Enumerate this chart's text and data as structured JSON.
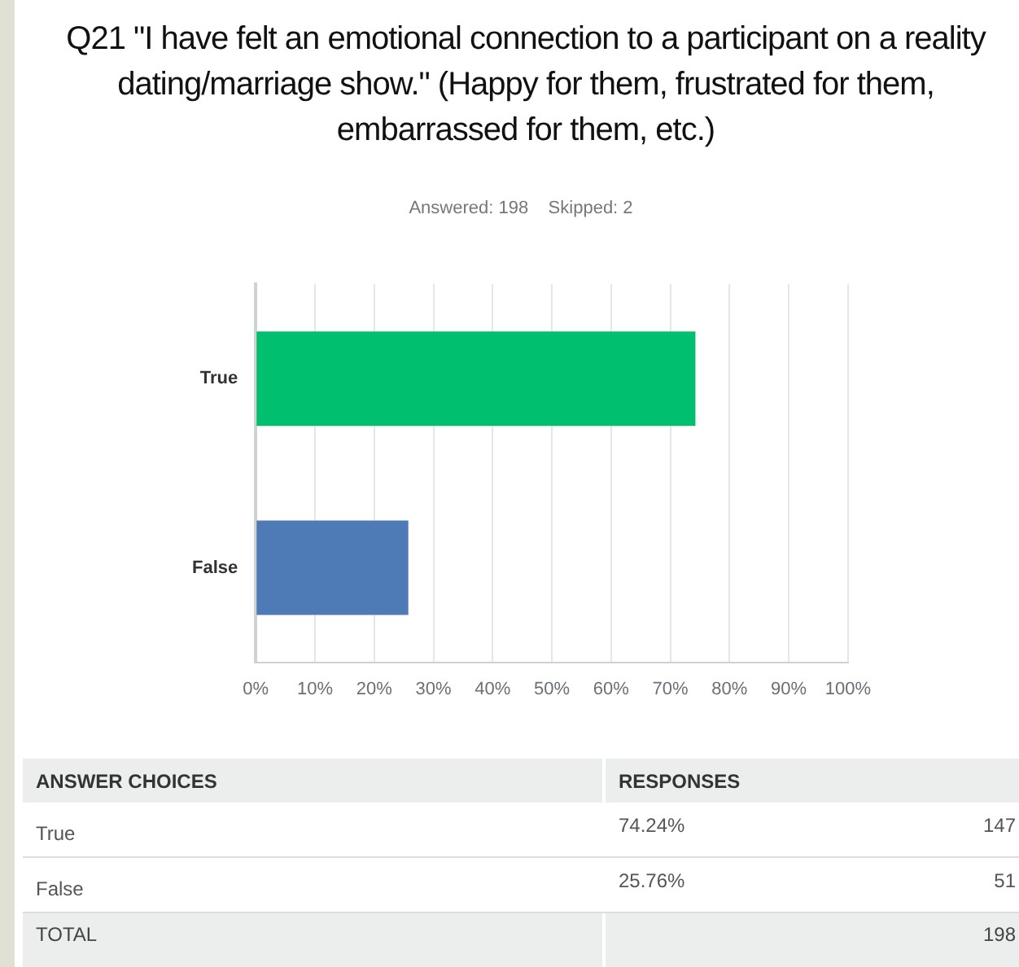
{
  "chart_data": {
    "type": "bar",
    "orientation": "horizontal",
    "title": "Q21 \"I have felt an emotional connection to a participant on a reality dating/marriage show.\" (Happy for them, frustrated for them, embarrassed for them, etc.)",
    "subtitle": "Answered: 198    Skipped: 2",
    "categories": [
      "True",
      "False"
    ],
    "values": [
      74.24,
      25.76
    ],
    "colors": [
      "#00bf6f",
      "#4e7ab5"
    ],
    "xlim": [
      0,
      100
    ],
    "xticks": [
      {
        "value": 0,
        "label": "0%"
      },
      {
        "value": 10,
        "label": "10%"
      },
      {
        "value": 20,
        "label": "20%"
      },
      {
        "value": 30,
        "label": "30%"
      },
      {
        "value": 40,
        "label": "40%"
      },
      {
        "value": 50,
        "label": "50%"
      },
      {
        "value": 60,
        "label": "60%"
      },
      {
        "value": 70,
        "label": "70%"
      },
      {
        "value": 80,
        "label": "80%"
      },
      {
        "value": 90,
        "label": "90%"
      },
      {
        "value": 100,
        "label": "100%"
      }
    ],
    "grid": "x",
    "legend": false,
    "annotations": [
      "ANSWER CHOICES",
      "RESPONSES",
      "74.24%",
      "147",
      "25.76%",
      "51",
      "TOTAL",
      "198"
    ]
  }
}
